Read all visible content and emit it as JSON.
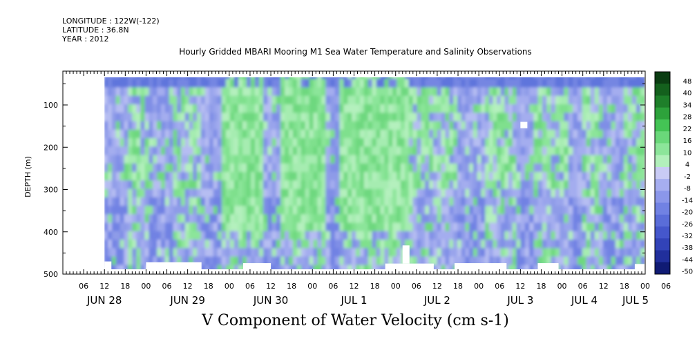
{
  "header": {
    "longitude": "LONGITUDE : 122W(-122)",
    "latitude": "LATITUDE : 36.8N",
    "year": "YEAR : 2012"
  },
  "chart_data": {
    "type": "heatmap",
    "title": "Hourly Gridded MBARI Mooring M1 Sea Water Temperature and Salinity Observations",
    "bottom_title": "V Component of Water Velocity (cm s-1)",
    "ylabel": "DEPTH (m)",
    "ylim": [
      500,
      20
    ],
    "y_reversed": true,
    "y_ticks": [
      100,
      200,
      300,
      400,
      500
    ],
    "xlim_hours": [
      0,
      168
    ],
    "x_hour_ticks": [
      "06",
      "12",
      "18",
      "00",
      "06",
      "12",
      "18",
      "00",
      "06",
      "12",
      "18",
      "00",
      "06",
      "12",
      "18",
      "00",
      "06",
      "12",
      "18",
      "00",
      "06",
      "12",
      "18",
      "00",
      "06",
      "12",
      "18",
      "00",
      "06"
    ],
    "x_day_labels": [
      "JUN 28",
      "JUN 29",
      "JUN 30",
      "JUL 1",
      "JUL 2",
      "JUL 3",
      "JUL 4",
      "JUL 5"
    ],
    "colorbar": {
      "labels": [
        "48",
        "40",
        "34",
        "28",
        "22",
        "16",
        "10",
        "4",
        "-2",
        "-8",
        "-14",
        "-20",
        "-26",
        "-32",
        "-38",
        "-44",
        "-50"
      ],
      "colors": [
        "#0b3d12",
        "#14601d",
        "#1e7f2a",
        "#2da23b",
        "#44c455",
        "#6ad87a",
        "#8ce59a",
        "#b2f0bb",
        "#c9cbf5",
        "#a6aef0",
        "#8b97ea",
        "#7182e3",
        "#5a6dd9",
        "#4557cc",
        "#3243b8",
        "#212f9c",
        "#101b74"
      ]
    },
    "field_columns": [
      {
        "hours": [
          12,
          19
        ],
        "mode": "blue"
      },
      {
        "hours": [
          19,
          25
        ],
        "mode": "mixed"
      },
      {
        "hours": [
          25,
          32
        ],
        "mode": "blue"
      },
      {
        "hours": [
          32,
          40
        ],
        "mode": "mixed"
      },
      {
        "hours": [
          40,
          46
        ],
        "mode": "blue"
      },
      {
        "hours": [
          46,
          58
        ],
        "mode": "green"
      },
      {
        "hours": [
          58,
          63
        ],
        "mode": "blue"
      },
      {
        "hours": [
          63,
          76
        ],
        "mode": "green"
      },
      {
        "hours": [
          76,
          80
        ],
        "mode": "blue"
      },
      {
        "hours": [
          80,
          100
        ],
        "mode": "green"
      },
      {
        "hours": [
          100,
          114
        ],
        "mode": "mixed"
      },
      {
        "hours": [
          114,
          122
        ],
        "mode": "blue"
      },
      {
        "hours": [
          122,
          131
        ],
        "mode": "mixed"
      },
      {
        "hours": [
          131,
          136
        ],
        "mode": "blue"
      },
      {
        "hours": [
          136,
          146
        ],
        "mode": "mixed"
      },
      {
        "hours": [
          146,
          150
        ],
        "mode": "blue"
      },
      {
        "hours": [
          150,
          156
        ],
        "mode": "mixed"
      },
      {
        "hours": [
          156,
          162
        ],
        "mode": "blue"
      },
      {
        "hours": [
          162,
          168
        ],
        "mode": "mixed"
      }
    ]
  }
}
